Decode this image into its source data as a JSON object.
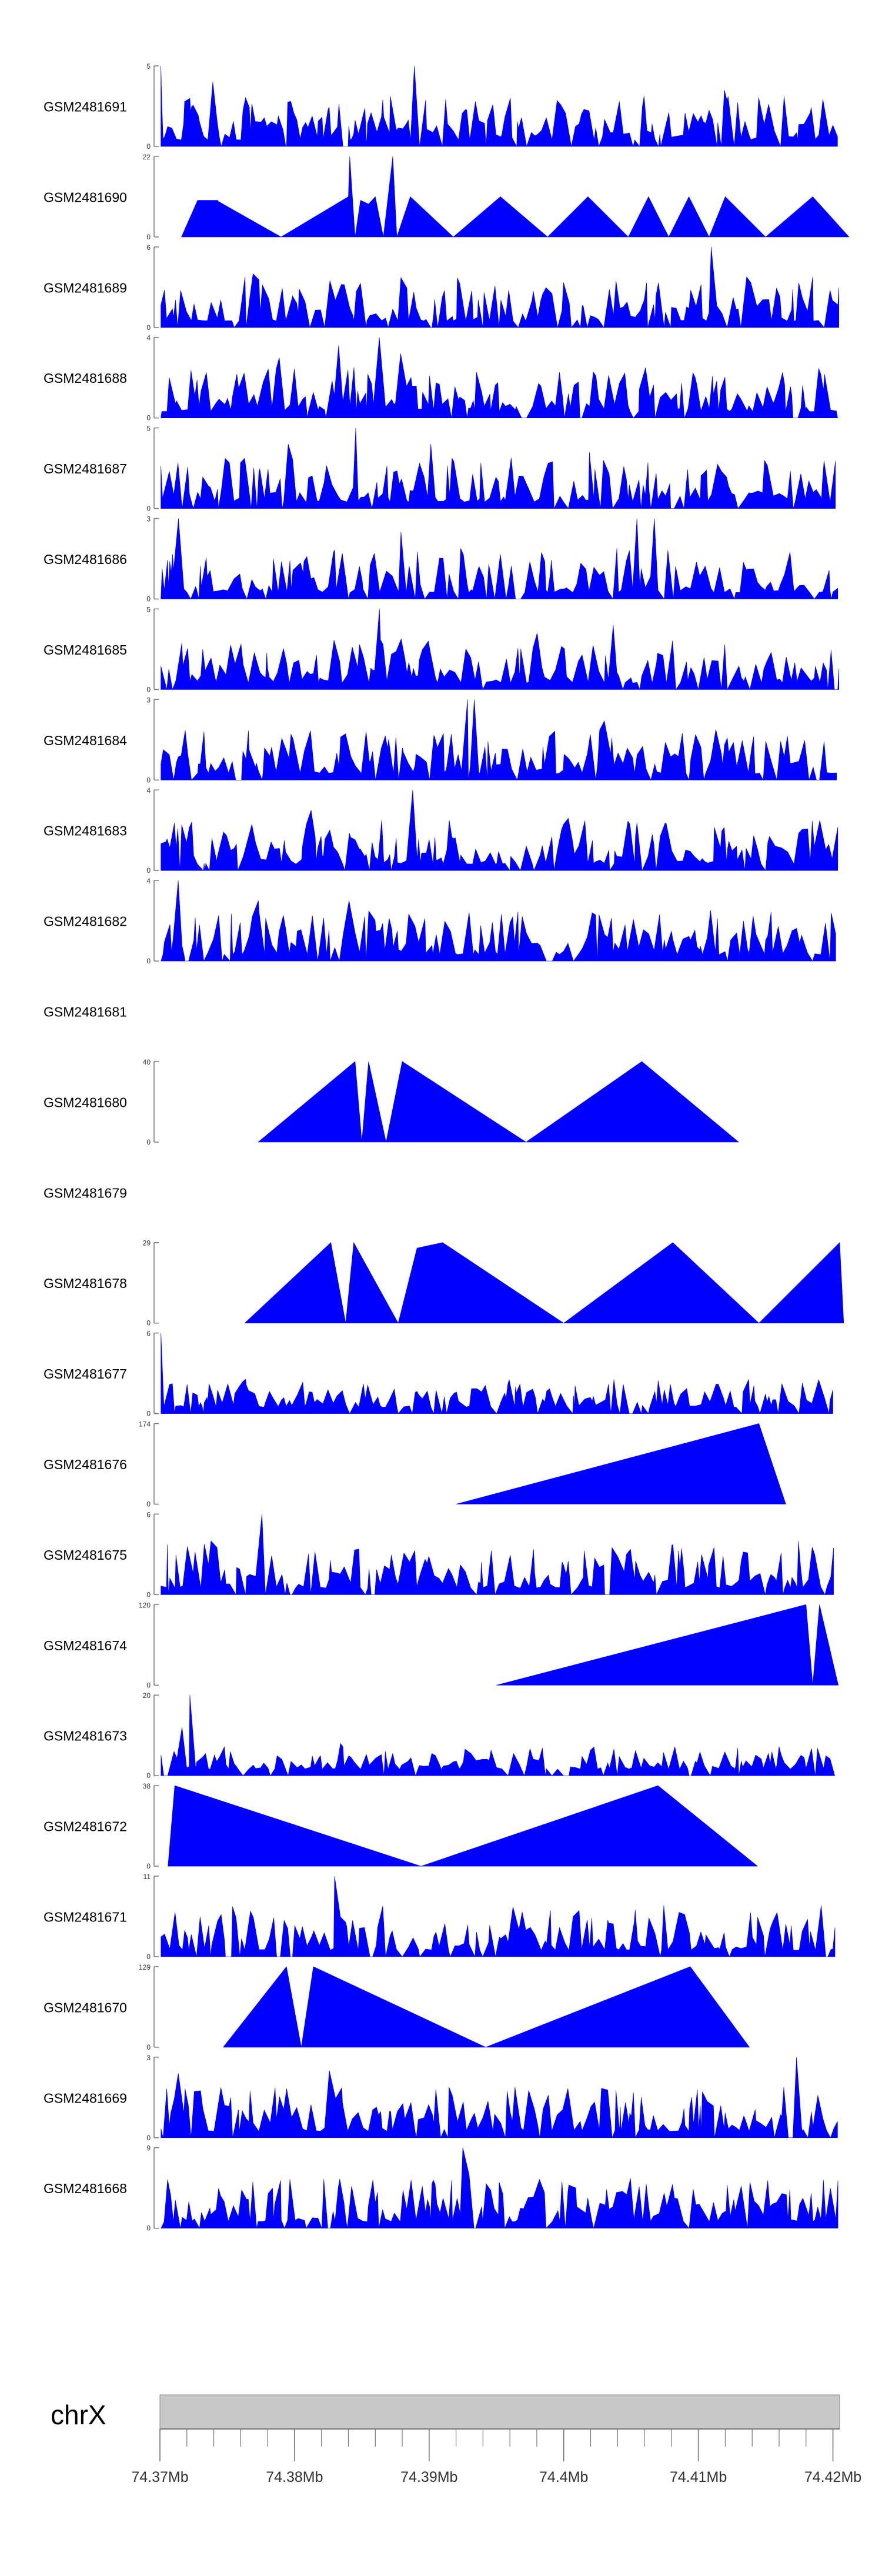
{
  "chart_data": {
    "type": "area",
    "tracks": [
      {
        "label": "GSM2481691",
        "ymax": "5",
        "ymin": "0",
        "shape": "dense",
        "seed": 11,
        "peaks": [
          [
            74.37,
            5
          ],
          [
            74.3888,
            5
          ],
          [
            74.3738,
            4
          ],
          [
            74.4119,
            3.5
          ]
        ]
      },
      {
        "label": "GSM2481690",
        "ymax": "22",
        "ymin": "0",
        "shape": "sparse",
        "points": [
          [
            74.3716,
            0
          ],
          [
            74.3728,
            10
          ],
          [
            74.3743,
            10
          ],
          [
            74.3745,
            0
          ],
          [
            74.3744,
            0
          ],
          [
            74.3742,
            10
          ],
          [
            74.379,
            0
          ],
          [
            74.384,
            11
          ],
          [
            74.3841,
            22
          ],
          [
            74.3845,
            0
          ],
          [
            74.3849,
            10
          ],
          [
            74.3855,
            9
          ],
          [
            74.386,
            11
          ],
          [
            74.3866,
            0
          ],
          [
            74.3873,
            22
          ],
          [
            74.3876,
            0
          ],
          [
            74.3886,
            11
          ],
          [
            74.3918,
            0
          ],
          [
            74.3953,
            11
          ],
          [
            74.3988,
            0
          ],
          [
            74.4018,
            11
          ],
          [
            74.4048,
            0
          ],
          [
            74.4063,
            11
          ],
          [
            74.4078,
            0
          ],
          [
            74.4093,
            11
          ],
          [
            74.4108,
            0
          ],
          [
            74.412,
            11
          ],
          [
            74.415,
            0
          ],
          [
            74.4185,
            11
          ],
          [
            74.4212,
            0
          ]
        ]
      },
      {
        "label": "GSM2481689",
        "ymax": "6",
        "ymin": "0",
        "shape": "dense",
        "seed": 23,
        "peaks": [
          [
            74.4111,
            6
          ],
          [
            74.377,
            4
          ],
          [
            74.3835,
            3.2
          ]
        ]
      },
      {
        "label": "GSM2481688",
        "ymax": "4",
        "ymin": "0",
        "shape": "dense",
        "seed": 31,
        "peaks": [
          [
            74.3864,
            4
          ],
          [
            74.3832,
            3.6
          ],
          [
            74.379,
            3
          ],
          [
            74.388,
            3.2
          ]
        ]
      },
      {
        "label": "GSM2481687",
        "ymax": "5",
        "ymin": "0",
        "shape": "dense",
        "seed": 41,
        "peaks": [
          [
            74.3845,
            5
          ],
          [
            74.3796,
            4
          ],
          [
            74.3902,
            4
          ],
          [
            74.402,
            3.5
          ]
        ]
      },
      {
        "label": "GSM2481686",
        "ymax": "3",
        "ymin": "0",
        "shape": "dense",
        "seed": 53,
        "peaks": [
          [
            74.4055,
            3
          ],
          [
            74.4068,
            3
          ],
          [
            74.3712,
            3
          ],
          [
            74.388,
            2.5
          ]
        ]
      },
      {
        "label": "GSM2481685",
        "ymax": "5",
        "ymin": "0",
        "shape": "dense",
        "seed": 61,
        "peaks": [
          [
            74.3862,
            5
          ],
          [
            74.4035,
            4
          ],
          [
            74.398,
            3.5
          ]
        ]
      },
      {
        "label": "GSM2481684",
        "ymax": "3",
        "ymin": "0",
        "shape": "dense",
        "seed": 71,
        "peaks": [
          [
            74.3928,
            3
          ],
          [
            74.3934,
            3
          ],
          [
            74.403,
            2.2
          ]
        ]
      },
      {
        "label": "GSM2481683",
        "ymax": "4",
        "ymin": "0",
        "shape": "dense",
        "seed": 83,
        "peaks": [
          [
            74.3887,
            4
          ],
          [
            74.3812,
            3
          ],
          [
            74.4003,
            2.6
          ]
        ]
      },
      {
        "label": "GSM2481682",
        "ymax": "4",
        "ymin": "0",
        "shape": "dense",
        "seed": 97,
        "peaks": [
          [
            74.3715,
            4
          ],
          [
            74.3773,
            3
          ],
          [
            74.3841,
            3
          ]
        ]
      },
      {
        "label": "GSM2481681",
        "ymax": "",
        "ymin": "",
        "shape": "empty"
      },
      {
        "label": "GSM2481680",
        "ymax": "40",
        "ymin": "0",
        "shape": "sparse",
        "points": [
          [
            74.3773,
            0
          ],
          [
            74.3845,
            40
          ],
          [
            74.385,
            0
          ],
          [
            74.3855,
            40
          ],
          [
            74.3868,
            0
          ],
          [
            74.388,
            40
          ],
          [
            74.3972,
            0
          ],
          [
            74.4058,
            40
          ],
          [
            74.413,
            0
          ]
        ]
      },
      {
        "label": "GSM2481679",
        "ymax": "",
        "ymin": "",
        "shape": "empty"
      },
      {
        "label": "GSM2481678",
        "ymax": "29",
        "ymin": "0",
        "shape": "sparse",
        "points": [
          [
            74.3763,
            0
          ],
          [
            74.3827,
            29
          ],
          [
            74.3838,
            0
          ],
          [
            74.3844,
            29
          ],
          [
            74.3877,
            0
          ],
          [
            74.3891,
            27
          ],
          [
            74.391,
            29
          ],
          [
            74.4,
            0
          ],
          [
            74.4081,
            29
          ],
          [
            74.4145,
            0
          ],
          [
            74.4205,
            29
          ],
          [
            74.4208,
            0
          ]
        ]
      },
      {
        "label": "GSM2481677",
        "ymax": "6",
        "ymin": "0",
        "shape": "dense",
        "seed": 101,
        "scale": 0.35,
        "peaks": [
          [
            74.37,
            6
          ],
          [
            74.4113,
            2.2
          ],
          [
            74.392,
            1.6
          ]
        ]
      },
      {
        "label": "GSM2481676",
        "ymax": "174",
        "ymin": "0",
        "shape": "sparse",
        "points": [
          [
            74.392,
            0
          ],
          [
            74.4145,
            174
          ],
          [
            74.4165,
            0
          ]
        ]
      },
      {
        "label": "GSM2481675",
        "ymax": "6",
        "ymin": "0",
        "shape": "dense",
        "seed": 113,
        "peaks": [
          [
            74.3775,
            6
          ],
          [
            74.374,
            4
          ],
          [
            74.4175,
            4
          ]
        ]
      },
      {
        "label": "GSM2481674",
        "ymax": "120",
        "ymin": "0",
        "shape": "sparse",
        "points": [
          [
            74.395,
            0
          ],
          [
            74.418,
            120
          ],
          [
            74.4185,
            0
          ],
          [
            74.419,
            120
          ],
          [
            74.4204,
            0
          ]
        ]
      },
      {
        "label": "GSM2481673",
        "ymax": "20",
        "ymin": "0",
        "shape": "dense",
        "seed": 127,
        "scale": 0.28,
        "peaks": [
          [
            74.3722,
            20
          ],
          [
            74.3715,
            12
          ],
          [
            74.3835,
            8
          ]
        ]
      },
      {
        "label": "GSM2481672",
        "ymax": "38",
        "ymin": "0",
        "shape": "sparse",
        "points": [
          [
            74.3706,
            0
          ],
          [
            74.3711,
            38
          ],
          [
            74.3894,
            0
          ],
          [
            74.407,
            38
          ],
          [
            74.4144,
            0
          ]
        ]
      },
      {
        "label": "GSM2481671",
        "ymax": "11",
        "ymin": "0",
        "shape": "dense",
        "seed": 131,
        "peaks": [
          [
            74.383,
            11
          ],
          [
            74.4192,
            7
          ],
          [
            74.4075,
            7
          ]
        ]
      },
      {
        "label": "GSM2481670",
        "ymax": "129",
        "ymin": "0",
        "shape": "sparse",
        "points": [
          [
            74.3747,
            0
          ],
          [
            74.3794,
            129
          ],
          [
            74.3805,
            0
          ],
          [
            74.3814,
            129
          ],
          [
            74.3942,
            0
          ],
          [
            74.4094,
            129
          ],
          [
            74.4138,
            0
          ]
        ]
      },
      {
        "label": "GSM2481669",
        "ymax": "3",
        "ymin": "0",
        "shape": "dense",
        "seed": 151,
        "peaks": [
          [
            74.4172,
            3
          ],
          [
            74.3828,
            2.5
          ],
          [
            74.3715,
            2.4
          ]
        ]
      },
      {
        "label": "GSM2481668",
        "ymax": "9",
        "ymin": "0",
        "shape": "dense",
        "seed": 163,
        "peaks": [
          [
            74.3925,
            9
          ],
          [
            74.3835,
            5.5
          ],
          [
            74.393,
            6
          ]
        ]
      }
    ],
    "xlim": [
      74.37,
      74.4205
    ],
    "axis": {
      "chromosome": "chrX",
      "ticks": [
        {
          "value": 74.37,
          "label": "74.37Mb"
        },
        {
          "value": 74.38,
          "label": "74.38Mb"
        },
        {
          "value": 74.39,
          "label": "74.39Mb"
        },
        {
          "value": 74.4,
          "label": "74.4Mb"
        },
        {
          "value": 74.41,
          "label": "74.41Mb"
        },
        {
          "value": 74.42,
          "label": "74.42Mb"
        }
      ],
      "minor_tick_step": 0.002
    },
    "colors": {
      "fill": "#0000ff",
      "ideogram": "#c8c8c8",
      "text": "#000000",
      "axis": "#777777"
    }
  }
}
